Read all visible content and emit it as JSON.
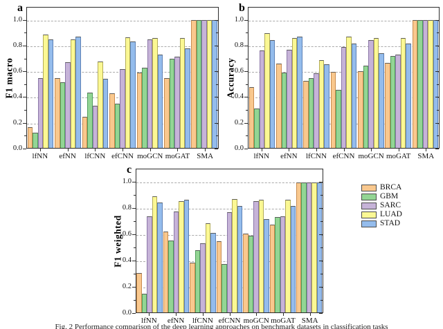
{
  "figure_caption": "Fig. 2 Performance comparison of the deep learning approaches on benchmark datasets in classification tasks",
  "legend": {
    "entries": [
      {
        "label": "BRCA",
        "fill": "#F9C88E",
        "border": "#C98B4E"
      },
      {
        "label": "GBM",
        "fill": "#93D594",
        "border": "#4F9F5C"
      },
      {
        "label": "SARC",
        "fill": "#C6B3D8",
        "border": "#8B77A8"
      },
      {
        "label": "LUAD",
        "fill": "#FBF894",
        "border": "#B3AC55"
      },
      {
        "label": "STAD",
        "fill": "#94BCEC",
        "border": "#5C81B6"
      }
    ]
  },
  "chart_data": [
    {
      "type": "bar",
      "panel_label": "a",
      "ylabel": "F1 macro",
      "categories": [
        "lfNN",
        "efNN",
        "lfCNN",
        "efCNN",
        "moGCN",
        "moGAT",
        "SMA"
      ],
      "ytick_labels": [
        "0.0",
        "0.2",
        "0.4",
        "0.6",
        "0.8",
        "1.0"
      ],
      "ylim": [
        0,
        1.1
      ],
      "grid": "horizontal dashed at 0.2 steps",
      "legend_position": "none",
      "series": [
        {
          "name": "BRCA",
          "values": [
            0.16,
            0.545,
            0.245,
            0.43,
            0.59,
            0.545,
            1.0
          ]
        },
        {
          "name": "GBM",
          "values": [
            0.12,
            0.515,
            0.435,
            0.345,
            0.63,
            0.7,
            1.0
          ]
        },
        {
          "name": "SARC",
          "values": [
            0.545,
            0.67,
            0.33,
            0.62,
            0.85,
            0.715,
            1.0
          ]
        },
        {
          "name": "LUAD",
          "values": [
            0.89,
            0.85,
            0.68,
            0.865,
            0.86,
            0.86,
            1.0
          ]
        },
        {
          "name": "STAD",
          "values": [
            0.85,
            0.875,
            0.54,
            0.835,
            0.73,
            0.78,
            1.0
          ]
        }
      ]
    },
    {
      "type": "bar",
      "panel_label": "b",
      "ylabel": "Accuracy",
      "categories": [
        "lfNN",
        "efNN",
        "lfCNN",
        "efCNN",
        "moGCN",
        "moGAT",
        "SMA"
      ],
      "ytick_labels": [
        "0.0",
        "0.2",
        "0.4",
        "0.6",
        "0.8",
        "1.0"
      ],
      "ylim": [
        0,
        1.1
      ],
      "grid": "horizontal dashed at 0.2 steps",
      "legend_position": "none",
      "series": [
        {
          "name": "BRCA",
          "values": [
            0.475,
            0.66,
            0.525,
            0.595,
            0.6,
            0.665,
            1.0
          ]
        },
        {
          "name": "GBM",
          "values": [
            0.31,
            0.59,
            0.55,
            0.455,
            0.645,
            0.72,
            1.0
          ]
        },
        {
          "name": "SARC",
          "values": [
            0.765,
            0.77,
            0.585,
            0.79,
            0.845,
            0.73,
            1.0
          ]
        },
        {
          "name": "LUAD",
          "values": [
            0.9,
            0.86,
            0.69,
            0.87,
            0.86,
            0.86,
            1.0
          ]
        },
        {
          "name": "STAD",
          "values": [
            0.845,
            0.87,
            0.655,
            0.82,
            0.74,
            0.82,
            1.0
          ]
        }
      ]
    },
    {
      "type": "bar",
      "panel_label": "c",
      "ylabel": "F1 weighted",
      "categories": [
        "lfNN",
        "efNN",
        "lfCNN",
        "efCNN",
        "moGCN",
        "moGAT",
        "SMA"
      ],
      "ytick_labels": [
        "0.0",
        "0.2",
        "0.4",
        "0.6",
        "0.8",
        "1.0"
      ],
      "ylim": [
        0,
        1.1
      ],
      "grid": "horizontal dashed at 0.2 steps",
      "legend_position": "right",
      "series": [
        {
          "name": "BRCA",
          "values": [
            0.305,
            0.62,
            0.385,
            0.55,
            0.605,
            0.675,
            1.0
          ]
        },
        {
          "name": "GBM",
          "values": [
            0.145,
            0.555,
            0.48,
            0.37,
            0.59,
            0.735,
            1.0
          ]
        },
        {
          "name": "SARC",
          "values": [
            0.74,
            0.775,
            0.53,
            0.77,
            0.855,
            0.74,
            1.0
          ]
        },
        {
          "name": "LUAD",
          "values": [
            0.895,
            0.855,
            0.685,
            0.87,
            0.865,
            0.865,
            1.0
          ]
        },
        {
          "name": "STAD",
          "values": [
            0.845,
            0.865,
            0.61,
            0.82,
            0.72,
            0.82,
            1.0
          ]
        }
      ]
    }
  ]
}
